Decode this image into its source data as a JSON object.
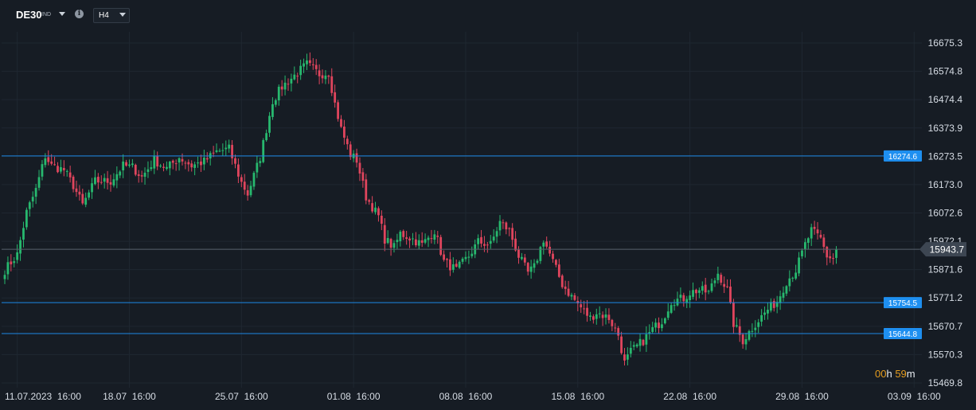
{
  "toolbar": {
    "symbol": "DE30",
    "symbol_type": "IND",
    "info_icon": "info-icon",
    "timeframe": "H4"
  },
  "countdown": {
    "hours": "00",
    "h_unit": "h",
    "minutes": "59",
    "m_unit": "m"
  },
  "colors": {
    "background": "#161c24",
    "up": "#27b86e",
    "down": "#e0455d",
    "level_line": "#1e88e5",
    "level_badge": "#1e8ff0",
    "price_badge": "#3d4652"
  },
  "chart_data": {
    "type": "candlestick",
    "symbol": "DE30",
    "timeframe": "H4",
    "ylim": [
      15469.8,
      16725
    ],
    "y_ticks": [
      16675.3,
      16574.8,
      16474.4,
      16373.9,
      16273.5,
      16173.0,
      16072.6,
      15972.1,
      15871.6,
      15771.2,
      15670.7,
      15570.3,
      15469.8
    ],
    "x_ticks": [
      "11.07.2023  16:00",
      "18.07  16:00",
      "25.07  16:00",
      "01.08  16:00",
      "08.08  16:00",
      "15.08  16:00",
      "22.08  16:00",
      "29.08  16:00",
      "03.09  16:00"
    ],
    "x_tick_candle_index": [
      4,
      40,
      76,
      112,
      148,
      184,
      220,
      256,
      292
    ],
    "current_price": 15943.7,
    "horizontal_levels": [
      16274.6,
      15754.5,
      15644.8
    ],
    "anchors": [
      [
        0,
        15870
      ],
      [
        4,
        15925
      ],
      [
        7,
        16075
      ],
      [
        10,
        16155
      ],
      [
        13,
        16275
      ],
      [
        15,
        16240
      ],
      [
        19,
        16225
      ],
      [
        22,
        16170
      ],
      [
        25,
        16100
      ],
      [
        29,
        16185
      ],
      [
        34,
        16185
      ],
      [
        38,
        16240
      ],
      [
        41,
        16235
      ],
      [
        44,
        16200
      ],
      [
        48,
        16260
      ],
      [
        52,
        16230
      ],
      [
        56,
        16270
      ],
      [
        60,
        16240
      ],
      [
        64,
        16255
      ],
      [
        68,
        16290
      ],
      [
        72,
        16300
      ],
      [
        76,
        16180
      ],
      [
        78,
        16140
      ],
      [
        82,
        16270
      ],
      [
        86,
        16470
      ],
      [
        89,
        16520
      ],
      [
        93,
        16560
      ],
      [
        97,
        16600
      ],
      [
        101,
        16565
      ],
      [
        104,
        16570
      ],
      [
        106,
        16460
      ],
      [
        108,
        16370
      ],
      [
        111,
        16280
      ],
      [
        113,
        16260
      ],
      [
        116,
        16130
      ],
      [
        120,
        16060
      ],
      [
        122,
        15980
      ],
      [
        125,
        15950
      ],
      [
        127,
        16000
      ],
      [
        131,
        15980
      ],
      [
        134,
        15960
      ],
      [
        138,
        16010
      ],
      [
        141,
        15900
      ],
      [
        145,
        15870
      ],
      [
        149,
        15920
      ],
      [
        152,
        15970
      ],
      [
        156,
        15960
      ],
      [
        159,
        16040
      ],
      [
        162,
        16010
      ],
      [
        165,
        15920
      ],
      [
        168,
        15860
      ],
      [
        170,
        15880
      ],
      [
        173,
        15980
      ],
      [
        176,
        15900
      ],
      [
        179,
        15820
      ],
      [
        181,
        15790
      ],
      [
        184,
        15750
      ],
      [
        188,
        15700
      ],
      [
        190,
        15720
      ],
      [
        194,
        15700
      ],
      [
        197,
        15640
      ],
      [
        199,
        15540
      ],
      [
        201,
        15580
      ],
      [
        205,
        15620
      ],
      [
        208,
        15660
      ],
      [
        211,
        15690
      ],
      [
        214,
        15760
      ],
      [
        218,
        15770
      ],
      [
        220,
        15790
      ],
      [
        223,
        15800
      ],
      [
        226,
        15790
      ],
      [
        229,
        15860
      ],
      [
        232,
        15800
      ],
      [
        234,
        15680
      ],
      [
        237,
        15620
      ],
      [
        241,
        15680
      ],
      [
        245,
        15730
      ],
      [
        248,
        15760
      ],
      [
        251,
        15830
      ],
      [
        254,
        15870
      ],
      [
        257,
        15960
      ],
      [
        259,
        16010
      ],
      [
        262,
        15980
      ],
      [
        264,
        15920
      ],
      [
        266,
        15910
      ],
      [
        267,
        15943.7
      ]
    ]
  }
}
